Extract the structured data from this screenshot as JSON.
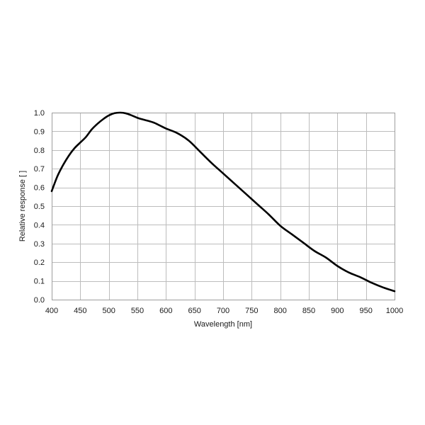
{
  "chart_data": {
    "type": "line",
    "title": "",
    "xlabel": "Wavelength [nm]",
    "ylabel": "Relative response [ ]",
    "xlim": [
      400,
      1000
    ],
    "ylim": [
      0.0,
      1.0
    ],
    "xticks": [
      "400",
      "450",
      "500",
      "550",
      "600",
      "650",
      "700",
      "750",
      "800",
      "850",
      "900",
      "950",
      "1000"
    ],
    "yticks": [
      "0.0",
      "0.1",
      "0.2",
      "0.3",
      "0.4",
      "0.5",
      "0.6",
      "0.7",
      "0.8",
      "0.9",
      "1.0"
    ],
    "grid": true,
    "legend": "none",
    "series_color": "#000000",
    "series": [
      {
        "x": [
          400,
          410,
          420,
          430,
          440,
          450,
          460,
          470,
          480,
          490,
          500,
          510,
          520,
          530,
          540,
          550,
          560,
          570,
          580,
          590,
          600,
          620,
          640,
          660,
          680,
          700,
          720,
          740,
          760,
          780,
          800,
          820,
          840,
          860,
          880,
          900,
          920,
          940,
          960,
          980,
          1000
        ],
        "y": [
          0.58,
          0.66,
          0.72,
          0.77,
          0.81,
          0.84,
          0.87,
          0.91,
          0.94,
          0.965,
          0.985,
          0.997,
          1.0,
          0.996,
          0.985,
          0.972,
          0.963,
          0.955,
          0.945,
          0.93,
          0.915,
          0.89,
          0.85,
          0.79,
          0.73,
          0.675,
          0.62,
          0.565,
          0.51,
          0.455,
          0.395,
          0.35,
          0.305,
          0.26,
          0.225,
          0.18,
          0.145,
          0.12,
          0.09,
          0.065,
          0.045
        ]
      }
    ]
  }
}
